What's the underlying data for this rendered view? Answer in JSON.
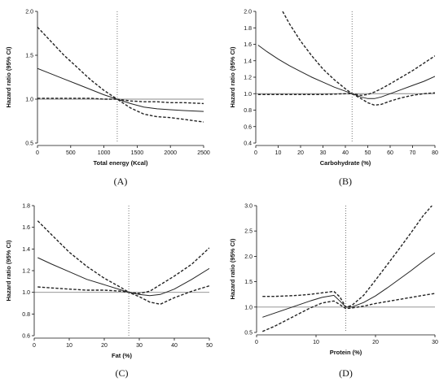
{
  "chart_data": [
    {
      "id": "A",
      "type": "line",
      "panel_label": "(A)",
      "xlabel": "Total energy  (Kcal)",
      "ylabel": "Hazard ratio (95% CI)",
      "xlim": [
        0,
        2500
      ],
      "ylim": [
        0.5,
        2.0
      ],
      "xticks": [
        0,
        500,
        1000,
        1500,
        2000,
        2500
      ],
      "xtick_labels": [
        "0",
        "500",
        "1000",
        "1500",
        "2000",
        "2500"
      ],
      "yticks": [
        0.5,
        1.0,
        1.5,
        2.0
      ],
      "ytick_labels": [
        "0.5",
        "1.0",
        "1.5",
        "2.0"
      ],
      "reference_y": 1.0,
      "vline_x": 1200,
      "series": [
        {
          "role": "estimate",
          "style": "solid",
          "x": [
            0,
            200,
            400,
            600,
            800,
            1000,
            1200,
            1400,
            1600,
            1800,
            2000,
            2200,
            2500
          ],
          "values": [
            1.35,
            1.29,
            1.23,
            1.17,
            1.11,
            1.05,
            1.0,
            0.95,
            0.91,
            0.89,
            0.88,
            0.87,
            0.86
          ]
        },
        {
          "role": "upper",
          "style": "dashed",
          "x": [
            0,
            200,
            400,
            600,
            800,
            1000,
            1200,
            1400,
            1600,
            1800,
            2000,
            2200,
            2500
          ],
          "values": [
            1.82,
            1.66,
            1.5,
            1.36,
            1.22,
            1.1,
            1.0,
            0.98,
            0.97,
            0.97,
            0.96,
            0.96,
            0.95
          ]
        },
        {
          "role": "lower",
          "style": "dashed",
          "x": [
            0,
            200,
            400,
            600,
            800,
            1000,
            1200,
            1400,
            1600,
            1800,
            2000,
            2200,
            2500
          ],
          "values": [
            1.01,
            1.01,
            1.01,
            1.01,
            1.01,
            1.0,
            1.0,
            0.9,
            0.83,
            0.8,
            0.79,
            0.77,
            0.74
          ]
        }
      ]
    },
    {
      "id": "B",
      "type": "line",
      "panel_label": "(B)",
      "xlabel": "Carbohydrate (%)",
      "ylabel": "Hazard ratio (95% CI)",
      "xlim": [
        0,
        80
      ],
      "ylim": [
        0.4,
        2.0
      ],
      "xticks": [
        0,
        10,
        20,
        30,
        40,
        50,
        60,
        70,
        80
      ],
      "xtick_labels": [
        "0",
        "10",
        "20",
        "30",
        "40",
        "50",
        "60",
        "70",
        "80"
      ],
      "yticks": [
        0.4,
        0.6,
        0.8,
        1.0,
        1.2,
        1.4,
        1.6,
        1.8,
        2.0
      ],
      "ytick_labels": [
        "0.4",
        "0.6",
        "0.8",
        "1.0",
        "1.2",
        "1.4",
        "1.6",
        "1.8",
        "2.0"
      ],
      "reference_y": 1.0,
      "vline_x": 43,
      "series": [
        {
          "role": "estimate",
          "style": "solid",
          "x": [
            1,
            5,
            10,
            15,
            20,
            25,
            30,
            35,
            40,
            43,
            47,
            50,
            53,
            56,
            60,
            65,
            70,
            75,
            80
          ],
          "values": [
            1.59,
            1.51,
            1.42,
            1.34,
            1.27,
            1.2,
            1.14,
            1.08,
            1.03,
            1.0,
            0.96,
            0.94,
            0.94,
            0.96,
            1.0,
            1.05,
            1.1,
            1.15,
            1.21
          ]
        },
        {
          "role": "upper",
          "style": "dashed",
          "x": [
            12,
            15,
            20,
            25,
            30,
            35,
            40,
            43,
            47,
            50,
            53,
            56,
            60,
            65,
            70,
            75,
            80
          ],
          "values": [
            2.0,
            1.85,
            1.64,
            1.46,
            1.3,
            1.17,
            1.06,
            1.0,
            0.98,
            0.99,
            1.02,
            1.06,
            1.12,
            1.2,
            1.28,
            1.37,
            1.46
          ]
        },
        {
          "role": "lower",
          "style": "dashed",
          "x": [
            1,
            10,
            20,
            30,
            40,
            43,
            47,
            50,
            53,
            56,
            60,
            65,
            70,
            75,
            80
          ],
          "values": [
            0.99,
            0.99,
            0.99,
            0.99,
            1.0,
            1.0,
            0.94,
            0.89,
            0.86,
            0.87,
            0.91,
            0.95,
            0.98,
            1.0,
            1.01
          ]
        }
      ]
    },
    {
      "id": "C",
      "type": "line",
      "panel_label": "(C)",
      "xlabel": "Fat (%)",
      "ylabel": "Hazard ratio (95% CI)",
      "xlim": [
        0,
        50
      ],
      "ylim": [
        0.6,
        1.8
      ],
      "xticks": [
        0,
        10,
        20,
        30,
        40,
        50
      ],
      "xtick_labels": [
        "0",
        "10",
        "20",
        "30",
        "40",
        "50"
      ],
      "yticks": [
        0.6,
        0.8,
        1.0,
        1.2,
        1.4,
        1.6,
        1.8
      ],
      "ytick_labels": [
        "0.6",
        "0.8",
        "1.0",
        "1.2",
        "1.4",
        "1.6",
        "1.8"
      ],
      "reference_y": 1.0,
      "vline_x": 27,
      "series": [
        {
          "role": "estimate",
          "style": "solid",
          "x": [
            1,
            5,
            10,
            15,
            20,
            25,
            27,
            30,
            33,
            36,
            40,
            45,
            50
          ],
          "values": [
            1.32,
            1.26,
            1.19,
            1.12,
            1.07,
            1.02,
            1.0,
            0.98,
            0.97,
            0.98,
            1.03,
            1.12,
            1.22
          ]
        },
        {
          "role": "upper",
          "style": "dashed",
          "x": [
            1,
            5,
            10,
            15,
            20,
            25,
            27,
            30,
            33,
            36,
            40,
            45,
            50
          ],
          "values": [
            1.66,
            1.53,
            1.37,
            1.24,
            1.13,
            1.04,
            1.0,
            0.99,
            1.01,
            1.07,
            1.15,
            1.26,
            1.41
          ]
        },
        {
          "role": "lower",
          "style": "dashed",
          "x": [
            1,
            5,
            10,
            15,
            20,
            25,
            27,
            30,
            33,
            36,
            40,
            45,
            50
          ],
          "values": [
            1.05,
            1.04,
            1.03,
            1.02,
            1.02,
            1.01,
            1.0,
            0.96,
            0.91,
            0.89,
            0.95,
            1.01,
            1.06
          ]
        }
      ]
    },
    {
      "id": "D",
      "type": "line",
      "panel_label": "(D)",
      "xlabel": "Protein (%)",
      "ylabel": "Hazard ratio (95% CI)",
      "xlim": [
        0,
        30
      ],
      "ylim": [
        0.5,
        3.0
      ],
      "xticks": [
        0,
        10,
        20,
        30
      ],
      "xtick_labels": [
        "0",
        "10",
        "20",
        "30"
      ],
      "yticks": [
        0.5,
        1.0,
        1.5,
        2.0,
        2.5,
        3.0
      ],
      "ytick_labels": [
        "0.5",
        "1.0",
        "1.5",
        "2.0",
        "2.5",
        "3.0"
      ],
      "reference_y": 1.0,
      "vline_x": 15,
      "series": [
        {
          "role": "estimate",
          "style": "solid",
          "x": [
            1,
            3,
            5,
            7,
            9,
            11,
            13,
            14,
            15,
            16,
            18,
            20,
            22,
            24,
            26,
            28,
            30
          ],
          "values": [
            0.8,
            0.88,
            0.96,
            1.04,
            1.12,
            1.19,
            1.23,
            1.12,
            1.0,
            1.0,
            1.09,
            1.22,
            1.38,
            1.55,
            1.72,
            1.9,
            2.07
          ]
        },
        {
          "role": "upper",
          "style": "dashed",
          "x": [
            1,
            3,
            5,
            7,
            9,
            11,
            13,
            14,
            15,
            16,
            18,
            20,
            22,
            24,
            26,
            28,
            29.5
          ],
          "values": [
            1.21,
            1.21,
            1.22,
            1.23,
            1.25,
            1.28,
            1.31,
            1.2,
            1.0,
            1.03,
            1.23,
            1.53,
            1.84,
            2.15,
            2.47,
            2.8,
            3.0
          ]
        },
        {
          "role": "lower",
          "style": "dashed",
          "x": [
            1,
            3,
            5,
            7,
            9,
            11,
            13,
            14,
            15,
            16,
            18,
            20,
            22,
            24,
            26,
            28,
            30
          ],
          "values": [
            0.52,
            0.62,
            0.74,
            0.86,
            0.98,
            1.08,
            1.12,
            1.05,
            0.97,
            0.98,
            1.02,
            1.07,
            1.11,
            1.15,
            1.19,
            1.23,
            1.27
          ]
        }
      ]
    }
  ]
}
